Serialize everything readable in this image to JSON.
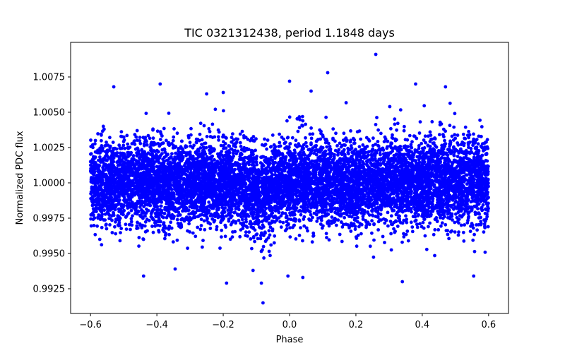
{
  "chart_data": {
    "type": "scatter",
    "title": "TIC 0321312438, period 1.1848 days",
    "xlabel": "Phase",
    "ylabel": "Normalized PDC flux",
    "xlim": [
      -0.66,
      0.66
    ],
    "ylim": [
      0.99075,
      1.00995
    ],
    "xticks": [
      -0.6,
      -0.4,
      -0.2,
      0.0,
      0.2,
      0.4,
      0.6
    ],
    "xtick_labels": [
      "−0.6",
      "−0.4",
      "−0.2",
      "0.0",
      "0.2",
      "0.4",
      "0.6"
    ],
    "yticks": [
      0.9925,
      0.995,
      0.9975,
      1.0,
      1.0025,
      1.005,
      1.0075
    ],
    "ytick_labels": [
      "0.9925",
      "0.9950",
      "0.9975",
      "1.0000",
      "1.0025",
      "1.0050",
      "1.0075"
    ],
    "grid": false,
    "marker_color": "#0000ff",
    "series": [
      {
        "name": "PDC flux",
        "phase_range": [
          -0.6,
          0.6
        ],
        "median_flux": 1.0,
        "scatter_sigma": 0.0015,
        "transit_center": -0.08,
        "transit_depth": 0.0009,
        "outliers": [
          {
            "x": -0.53,
            "y": 1.0068
          },
          {
            "x": -0.39,
            "y": 1.007
          },
          {
            "x": -0.44,
            "y": 0.9934
          },
          {
            "x": -0.345,
            "y": 0.9939
          },
          {
            "x": -0.19,
            "y": 0.9929
          },
          {
            "x": -0.2,
            "y": 1.0064
          },
          {
            "x": -0.25,
            "y": 1.0063
          },
          {
            "x": -0.08,
            "y": 0.9915
          },
          {
            "x": -0.085,
            "y": 0.9929
          },
          {
            "x": -0.11,
            "y": 0.9938
          },
          {
            "x": 0.0,
            "y": 1.0072
          },
          {
            "x": 0.065,
            "y": 1.0065
          },
          {
            "x": 0.115,
            "y": 1.0078
          },
          {
            "x": 0.26,
            "y": 1.0091
          },
          {
            "x": 0.38,
            "y": 1.007
          },
          {
            "x": 0.47,
            "y": 1.0068
          },
          {
            "x": 0.34,
            "y": 0.993
          },
          {
            "x": 0.555,
            "y": 0.9934
          },
          {
            "x": 0.04,
            "y": 0.9933
          },
          {
            "x": -0.005,
            "y": 0.9934
          }
        ]
      }
    ]
  }
}
